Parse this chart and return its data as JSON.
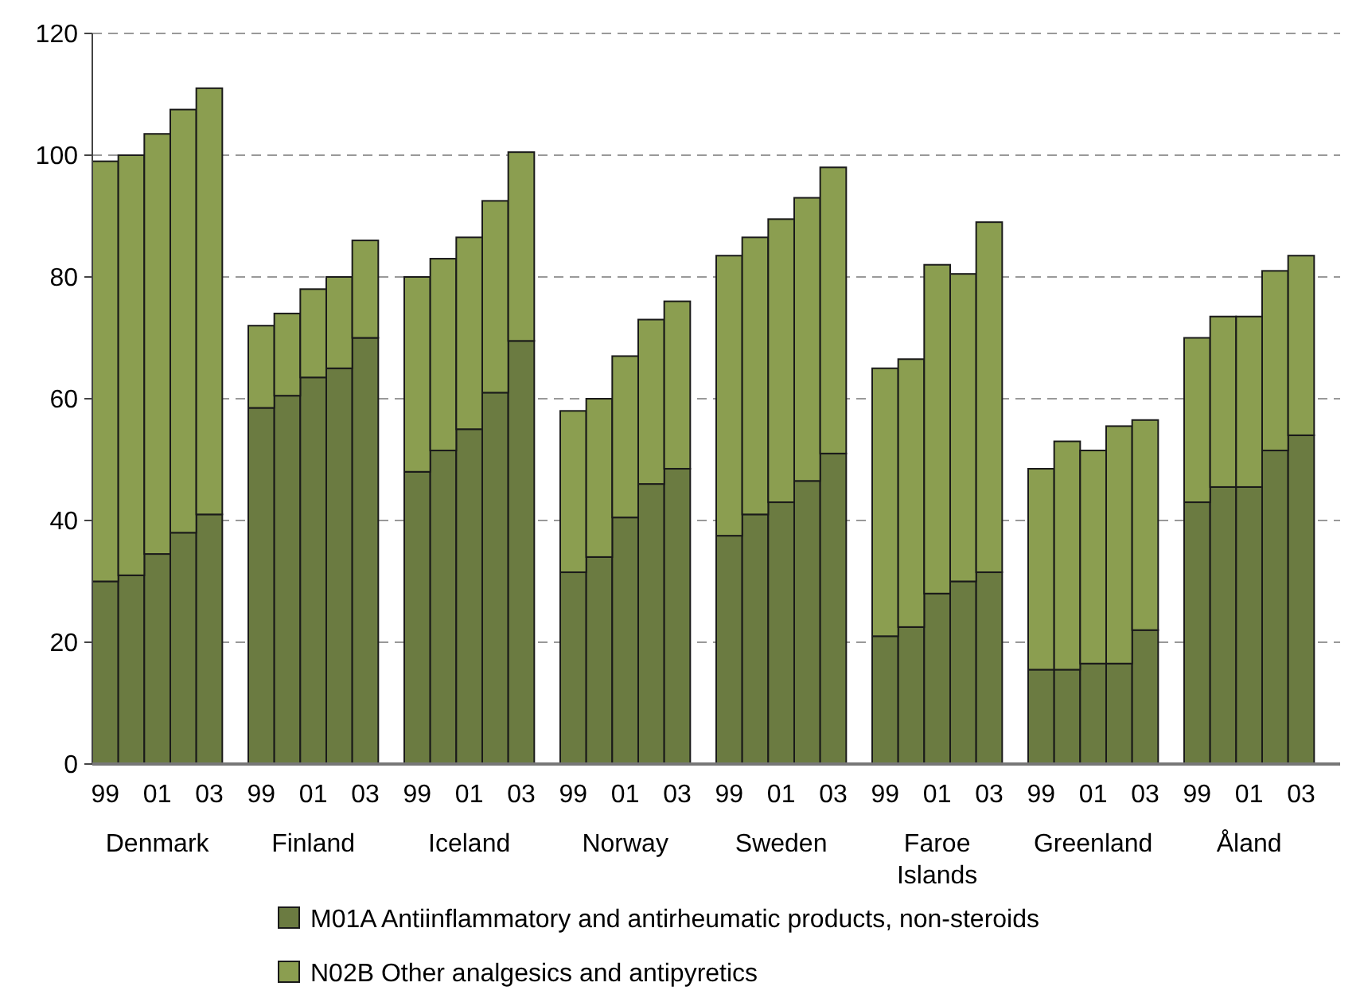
{
  "chart_data": {
    "type": "bar",
    "stacked": true,
    "categories": [
      "99",
      null,
      "01",
      null,
      "03",
      "99",
      null,
      "01",
      null,
      "03",
      "99",
      null,
      "01",
      null,
      "03",
      "99",
      null,
      "01",
      null,
      "03",
      "99",
      null,
      "01",
      null,
      "03",
      "99",
      null,
      "01",
      null,
      "03",
      "99",
      null,
      "01",
      null,
      "03",
      "99",
      null,
      "01",
      null,
      "03"
    ],
    "series": [
      {
        "name": "M01A Antiinflammatory and antirheumatic products, non-steroids",
        "color": "#6b7b41",
        "values": [
          30,
          31,
          34.5,
          38,
          41,
          58.5,
          60.5,
          63.5,
          65,
          70,
          48,
          51.5,
          55,
          61,
          69.5,
          31.5,
          34,
          40.5,
          46,
          48.5,
          37.5,
          41,
          43,
          46.5,
          51,
          21,
          22.5,
          28,
          30,
          31.5,
          15.5,
          15.5,
          16.5,
          16.5,
          22,
          43,
          45.5,
          45.5,
          51.5,
          54
        ]
      },
      {
        "name": "N02B Other analgesics and antipyretics",
        "color": "#8b9e50",
        "values": [
          69,
          69,
          69,
          69.5,
          70,
          13.5,
          13.5,
          14.5,
          15,
          16,
          32,
          31.5,
          31.5,
          31.5,
          31,
          26.5,
          26,
          26.5,
          27,
          27.5,
          46,
          45.5,
          46.5,
          46.5,
          47,
          44,
          44,
          54,
          50.5,
          57.5,
          33,
          37.5,
          35,
          39,
          34.5,
          27,
          28,
          28,
          29.5,
          29.5
        ]
      }
    ],
    "annotations": [
      "Denmark",
      "Finland",
      "Iceland",
      "Norway",
      "Sweden",
      "Faroe Islands",
      "Greenland",
      "Åland"
    ],
    "ylim": [
      0,
      120
    ],
    "yticks": [
      0,
      20,
      40,
      60,
      80,
      100,
      120
    ],
    "grid": "y",
    "legend": "bottom"
  }
}
